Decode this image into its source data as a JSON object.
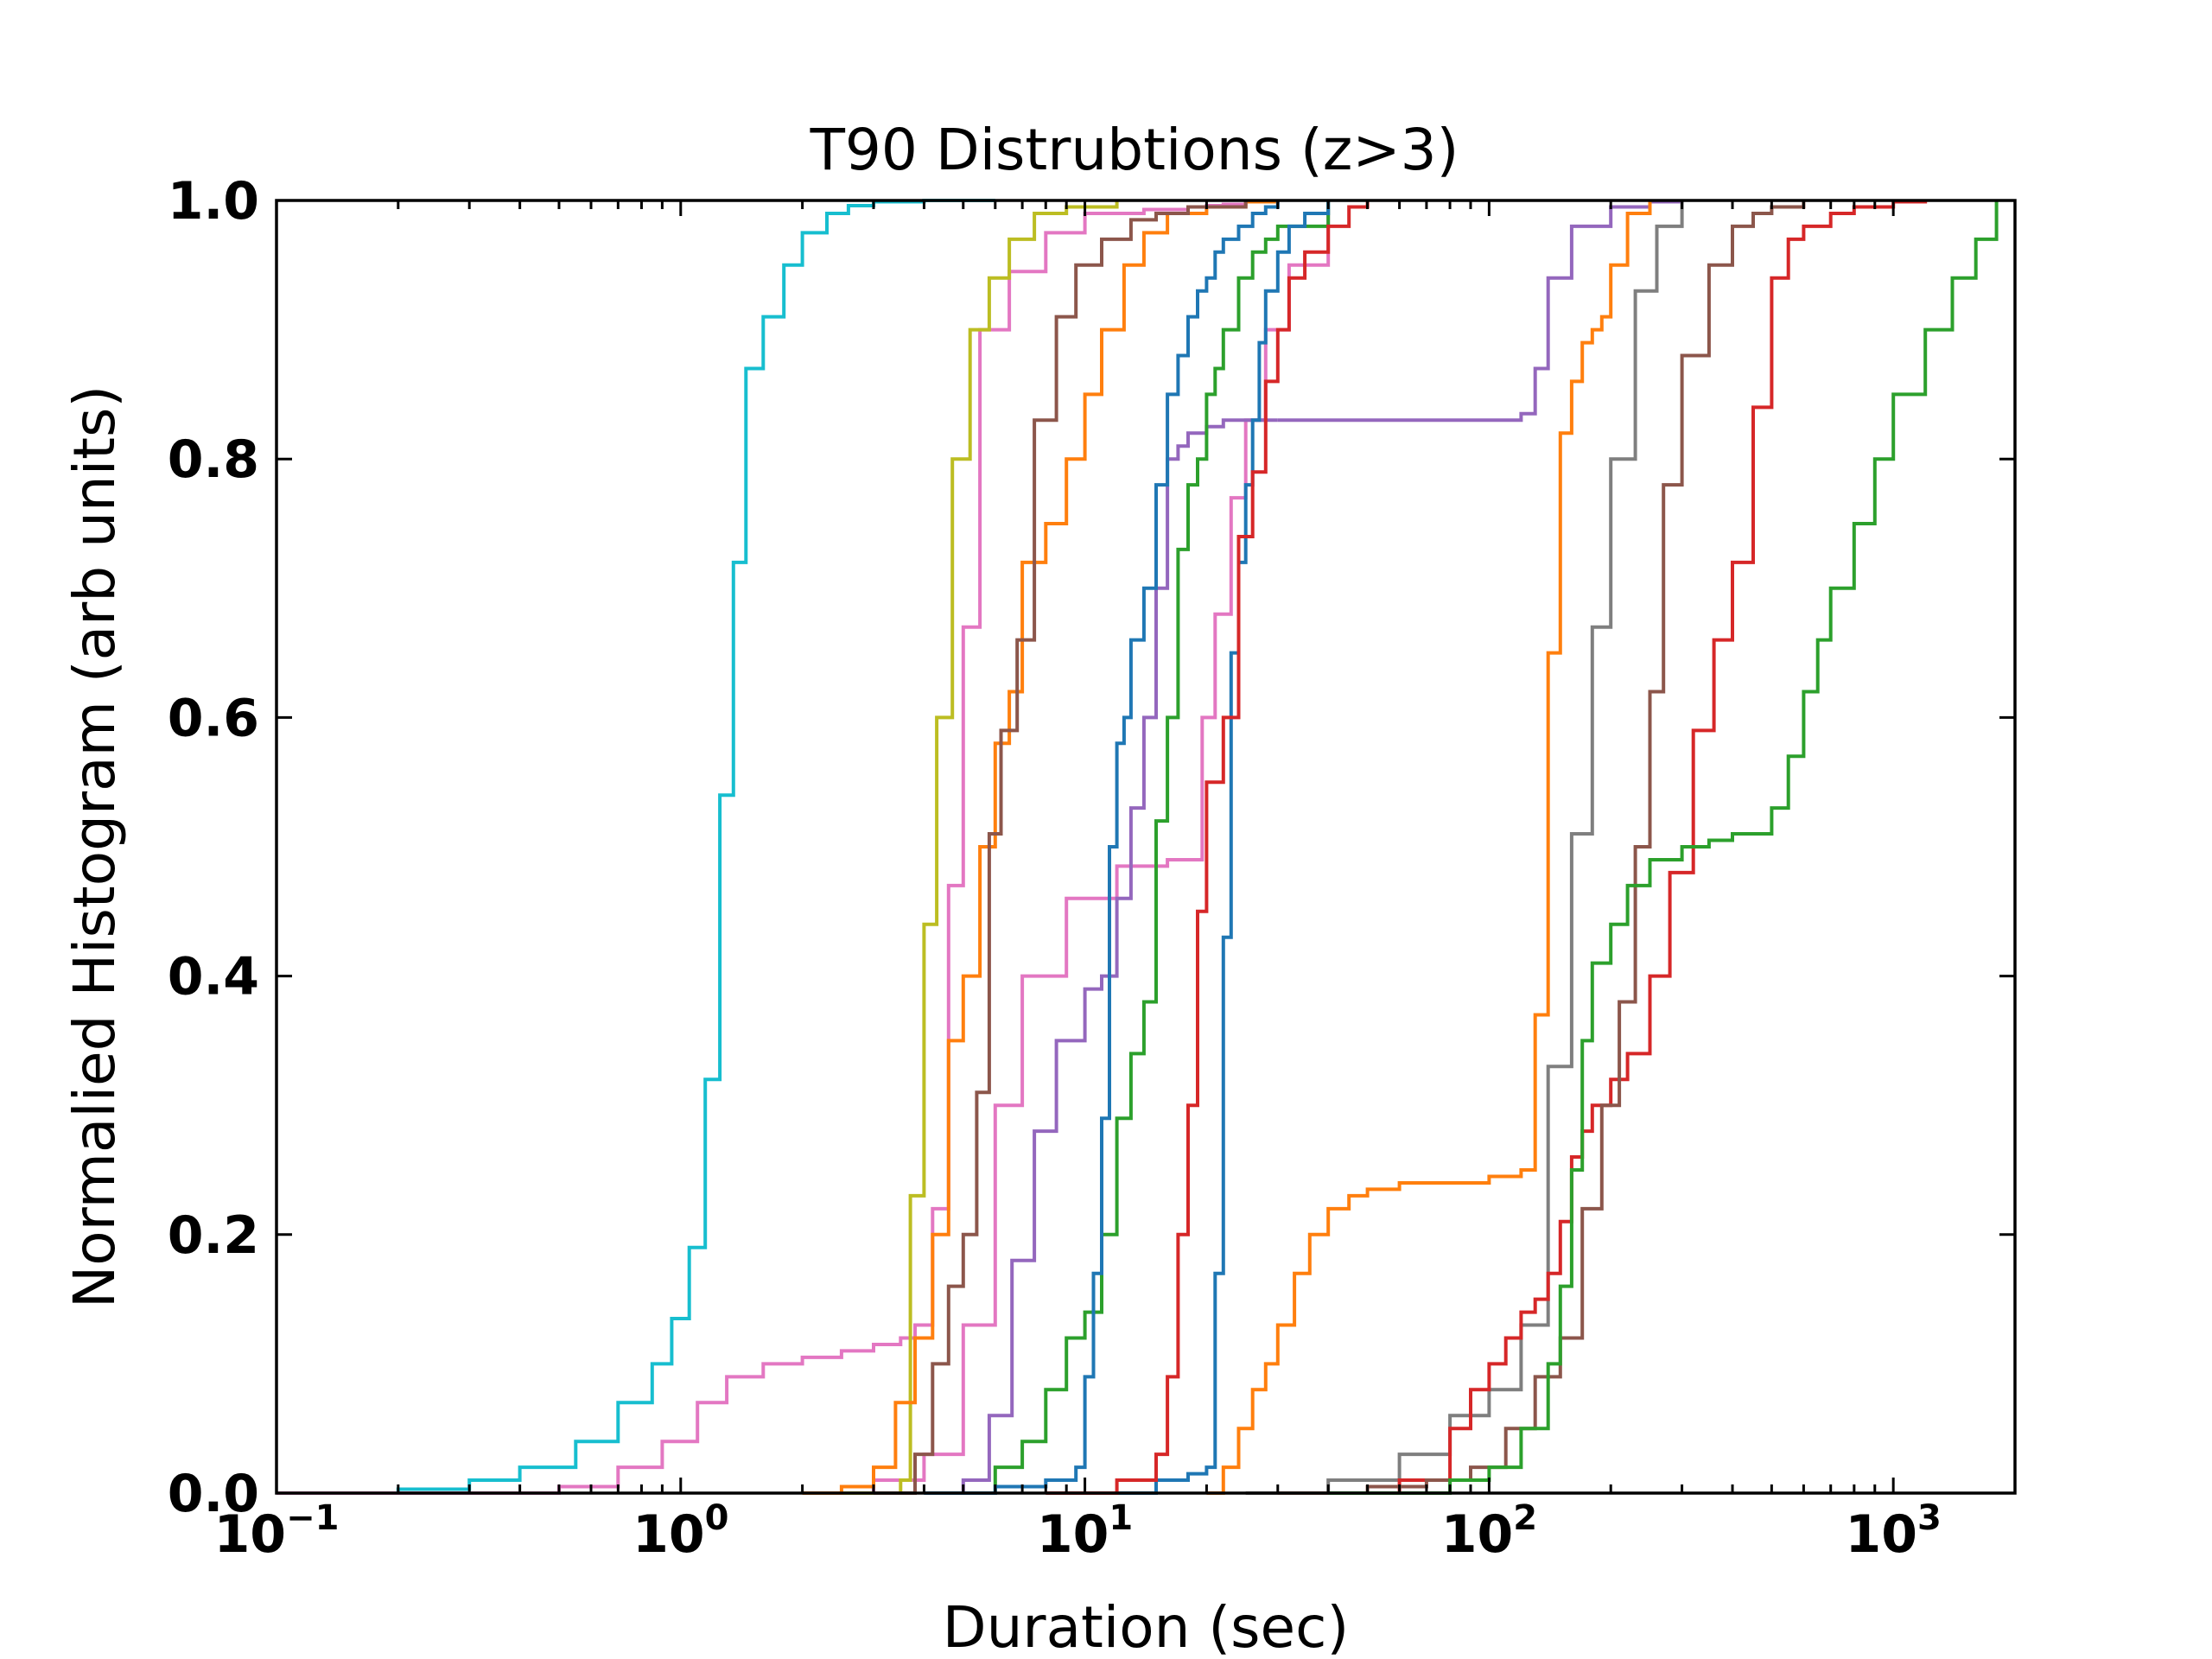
{
  "chart_data": {
    "type": "line",
    "title": "T90 Distrubtions (z>3)",
    "xlabel": "Duration (sec)",
    "ylabel": "Normalied Histogram (arb units)",
    "x_scale": "log",
    "xlim": [
      0.1,
      2000
    ],
    "ylim": [
      0.0,
      1.0
    ],
    "grid": false,
    "legend": "none",
    "x_ticks": [
      {
        "base": "10",
        "exp": "−1",
        "value": 0.1
      },
      {
        "base": "10",
        "exp": "0",
        "value": 1
      },
      {
        "base": "10",
        "exp": "1",
        "value": 10
      },
      {
        "base": "10",
        "exp": "2",
        "value": 100
      },
      {
        "base": "10",
        "exp": "3",
        "value": 1000
      }
    ],
    "y_ticks": [
      {
        "label": "0.0",
        "value": 0.0
      },
      {
        "label": "0.2",
        "value": 0.2
      },
      {
        "label": "0.4",
        "value": 0.4
      },
      {
        "label": "0.6",
        "value": 0.6
      },
      {
        "label": "0.8",
        "value": 0.8
      },
      {
        "label": "1.0",
        "value": 1.0
      }
    ],
    "series": [
      {
        "color": "#17becf",
        "x": [
          0.1,
          0.2,
          0.3,
          0.4,
          0.55,
          0.7,
          0.85,
          0.95,
          1.05,
          1.15,
          1.25,
          1.35,
          1.45,
          1.6,
          1.8,
          2.0,
          2.3,
          2.6,
          3.0,
          4.0,
          6.0
        ],
        "y": [
          0.0,
          0.003,
          0.01,
          0.02,
          0.04,
          0.07,
          0.1,
          0.135,
          0.19,
          0.32,
          0.54,
          0.72,
          0.87,
          0.91,
          0.95,
          0.975,
          0.99,
          0.996,
          0.999,
          1.0,
          1.0
        ]
      },
      {
        "color": "#e377c2",
        "x": [
          0.1,
          0.5,
          0.7,
          0.9,
          1.1,
          1.3,
          1.6,
          2.0,
          2.5,
          3.0,
          3.5,
          3.8,
          4.2,
          4.6,
          5.0,
          5.5,
          6.5,
          8.0,
          10.0,
          14.0,
          18.0,
          20.0,
          22.0,
          25.0,
          30.0
        ],
        "y": [
          0.0,
          0.005,
          0.02,
          0.04,
          0.07,
          0.09,
          0.1,
          0.105,
          0.11,
          0.115,
          0.12,
          0.13,
          0.22,
          0.47,
          0.67,
          0.9,
          0.945,
          0.975,
          0.99,
          0.993,
          0.995,
          0.996,
          0.997,
          0.999,
          1.0
        ]
      },
      {
        "color": "#e377c2",
        "x": [
          2.0,
          3.0,
          4.0,
          5.0,
          6.0,
          7.0,
          9.0,
          12.0,
          16.0,
          18.0,
          19.5,
          21.0,
          23.0,
          25.0,
          28.0,
          32.0,
          40.0
        ],
        "y": [
          0.0,
          0.01,
          0.03,
          0.13,
          0.3,
          0.4,
          0.46,
          0.485,
          0.49,
          0.49,
          0.6,
          0.68,
          0.77,
          0.83,
          0.9,
          0.95,
          1.0
        ]
      },
      {
        "color": "#bcbd22",
        "x": [
          2.0,
          3.5,
          3.7,
          4.0,
          4.3,
          4.7,
          5.2,
          5.8,
          6.5,
          7.5,
          9.0,
          12.0
        ],
        "y": [
          0.0,
          0.01,
          0.23,
          0.44,
          0.6,
          0.8,
          0.9,
          0.94,
          0.97,
          0.99,
          0.995,
          1.0
        ]
      },
      {
        "color": "#ff7f0e",
        "x": [
          2.0,
          2.5,
          3.0,
          3.4,
          3.8,
          4.2,
          4.6,
          5.0,
          5.5,
          6.0,
          6.5,
          7.0,
          8.0,
          9.0,
          10.0,
          11.0,
          12.5,
          14.0,
          16.0,
          20.0,
          25.0,
          30.0
        ],
        "y": [
          0.0,
          0.005,
          0.02,
          0.07,
          0.12,
          0.2,
          0.35,
          0.4,
          0.5,
          0.58,
          0.62,
          0.72,
          0.75,
          0.8,
          0.85,
          0.9,
          0.95,
          0.975,
          0.99,
          0.995,
          0.999,
          1.0
        ]
      },
      {
        "color": "#8c564b",
        "x": [
          3.0,
          3.8,
          4.2,
          4.6,
          5.0,
          5.4,
          5.8,
          6.2,
          6.8,
          7.5,
          8.5,
          9.5,
          11.0,
          13.0,
          15.0,
          18.0,
          25.0
        ],
        "y": [
          0.0,
          0.03,
          0.1,
          0.16,
          0.2,
          0.31,
          0.51,
          0.59,
          0.66,
          0.83,
          0.91,
          0.95,
          0.97,
          0.985,
          0.99,
          0.995,
          1.0
        ]
      },
      {
        "color": "#9467bd",
        "x": [
          4.0,
          5.0,
          5.8,
          6.6,
          7.5,
          8.5,
          10.0,
          11.0,
          12.0,
          13.0,
          14.0,
          15.0,
          16.0,
          17.0,
          18.0,
          20.0,
          22.0,
          25.0,
          30.0
        ],
        "y": [
          0.0,
          0.01,
          0.06,
          0.18,
          0.28,
          0.35,
          0.39,
          0.4,
          0.46,
          0.53,
          0.6,
          0.7,
          0.8,
          0.81,
          0.82,
          0.825,
          0.83,
          0.83,
          0.83
        ]
      },
      {
        "color": "#9467bd",
        "x": [
          30.0,
          60.0,
          100.0,
          120.0,
          130.0,
          140.0,
          160.0,
          200.0,
          250.0,
          300.0
        ],
        "y": [
          0.83,
          0.83,
          0.83,
          0.835,
          0.87,
          0.94,
          0.98,
          0.995,
          0.999,
          1.0
        ]
      },
      {
        "color": "#2ca02c",
        "x": [
          5.0,
          6.0,
          7.0,
          8.0,
          9.0,
          10.0,
          11.0,
          12.0,
          13.0,
          14.0,
          15.0,
          16.0,
          17.0,
          18.0,
          19.0,
          20.0,
          21.0,
          22.0,
          24.0,
          26.0,
          28.0,
          30.0,
          40.0
        ],
        "y": [
          0.0,
          0.02,
          0.04,
          0.08,
          0.12,
          0.14,
          0.2,
          0.29,
          0.34,
          0.38,
          0.52,
          0.6,
          0.73,
          0.78,
          0.8,
          0.85,
          0.87,
          0.9,
          0.94,
          0.96,
          0.97,
          0.98,
          1.0
        ]
      },
      {
        "color": "#1f77b4",
        "x": [
          4.0,
          6.0,
          8.0,
          9.5,
          10.0,
          10.5,
          11.0,
          11.5,
          12.0,
          12.5,
          13.0,
          14.0,
          15.0,
          16.0,
          17.0,
          18.0,
          19.0,
          20.0,
          21.0,
          22.0,
          24.0,
          26.0,
          28.0,
          30.0
        ],
        "y": [
          0.0,
          0.005,
          0.01,
          0.02,
          0.09,
          0.17,
          0.29,
          0.5,
          0.58,
          0.6,
          0.66,
          0.7,
          0.78,
          0.85,
          0.88,
          0.91,
          0.93,
          0.94,
          0.96,
          0.97,
          0.98,
          0.99,
          0.995,
          1.0
        ]
      },
      {
        "color": "#1f77b4",
        "x": [
          10.0,
          15.0,
          18.0,
          20.0,
          21.0,
          22.0,
          23.0,
          24.0,
          25.0,
          26.0,
          27.0,
          28.0,
          30.0,
          32.0,
          35.0,
          40.0
        ],
        "y": [
          0.0,
          0.01,
          0.015,
          0.02,
          0.17,
          0.43,
          0.65,
          0.72,
          0.78,
          0.83,
          0.89,
          0.93,
          0.96,
          0.98,
          0.99,
          1.0
        ]
      },
      {
        "color": "#d62728",
        "x": [
          8.0,
          12.0,
          15.0,
          16.0,
          17.0,
          18.0,
          19.0,
          20.0,
          22.0,
          24.0,
          26.0,
          28.0,
          30.0,
          32.0,
          35.0,
          40.0,
          45.0,
          50.0
        ],
        "y": [
          0.0,
          0.01,
          0.03,
          0.09,
          0.2,
          0.3,
          0.45,
          0.55,
          0.6,
          0.74,
          0.79,
          0.86,
          0.9,
          0.94,
          0.96,
          0.98,
          0.995,
          1.0
        ]
      },
      {
        "color": "#ff7f0e",
        "x": [
          20.0,
          22.0,
          24.0,
          26.0,
          28.0,
          30.0,
          33.0,
          36.0,
          40.0,
          45.0,
          50.0,
          60.0,
          80.0,
          100.0,
          120.0,
          130.0,
          140.0,
          150.0,
          160.0,
          170.0,
          180.0,
          190.0,
          200.0,
          220.0,
          250.0
        ],
        "y": [
          0.0,
          0.02,
          0.05,
          0.08,
          0.1,
          0.13,
          0.17,
          0.2,
          0.22,
          0.23,
          0.235,
          0.24,
          0.24,
          0.245,
          0.25,
          0.37,
          0.65,
          0.82,
          0.86,
          0.89,
          0.9,
          0.91,
          0.95,
          0.99,
          1.0
        ]
      },
      {
        "color": "#7f7f7f",
        "x": [
          25.0,
          40.0,
          60.0,
          80.0,
          100.0,
          120.0,
          140.0,
          160.0,
          180.0,
          200.0,
          230.0,
          260.0,
          300.0
        ],
        "y": [
          0.0,
          0.01,
          0.03,
          0.06,
          0.08,
          0.13,
          0.33,
          0.51,
          0.67,
          0.8,
          0.93,
          0.98,
          1.0
        ]
      },
      {
        "color": "#d62728",
        "x": [
          40.0,
          60.0,
          80.0,
          90.0,
          100.0,
          110.0,
          120.0,
          130.0,
          140.0,
          150.0,
          160.0,
          170.0,
          180.0,
          200.0,
          220.0,
          250.0,
          280.0,
          320.0,
          360.0,
          400.0,
          450.0,
          500.0,
          550.0,
          600.0,
          700.0,
          800.0,
          1000.0,
          1200.0
        ],
        "y": [
          0.0,
          0.01,
          0.05,
          0.08,
          0.1,
          0.12,
          0.14,
          0.15,
          0.17,
          0.21,
          0.26,
          0.28,
          0.3,
          0.32,
          0.34,
          0.4,
          0.48,
          0.59,
          0.66,
          0.72,
          0.84,
          0.94,
          0.97,
          0.98,
          0.99,
          0.995,
          0.999,
          1.0
        ]
      },
      {
        "color": "#8c564b",
        "x": [
          30.0,
          50.0,
          70.0,
          90.0,
          110.0,
          130.0,
          150.0,
          170.0,
          190.0,
          210.0,
          230.0,
          250.0,
          270.0,
          300.0,
          350.0,
          400.0,
          450.0,
          500.0,
          600.0
        ],
        "y": [
          0.0,
          0.005,
          0.01,
          0.02,
          0.05,
          0.09,
          0.12,
          0.22,
          0.3,
          0.38,
          0.5,
          0.62,
          0.78,
          0.88,
          0.95,
          0.98,
          0.99,
          0.995,
          1.0
        ]
      },
      {
        "color": "#2ca02c",
        "x": [
          40.0,
          80.0,
          100.0,
          120.0,
          140.0,
          150.0,
          160.0,
          170.0,
          180.0,
          200.0,
          220.0,
          250.0,
          300.0,
          350.0,
          400.0,
          450.0,
          500.0,
          550.0,
          600.0,
          650.0,
          700.0,
          800.0,
          900.0,
          1000.0,
          1200.0,
          1400.0,
          1600.0,
          1800.0
        ],
        "y": [
          0.0,
          0.01,
          0.02,
          0.05,
          0.1,
          0.16,
          0.25,
          0.35,
          0.41,
          0.44,
          0.47,
          0.49,
          0.5,
          0.505,
          0.51,
          0.51,
          0.53,
          0.57,
          0.62,
          0.66,
          0.7,
          0.75,
          0.8,
          0.85,
          0.9,
          0.94,
          0.97,
          1.0
        ]
      }
    ]
  }
}
